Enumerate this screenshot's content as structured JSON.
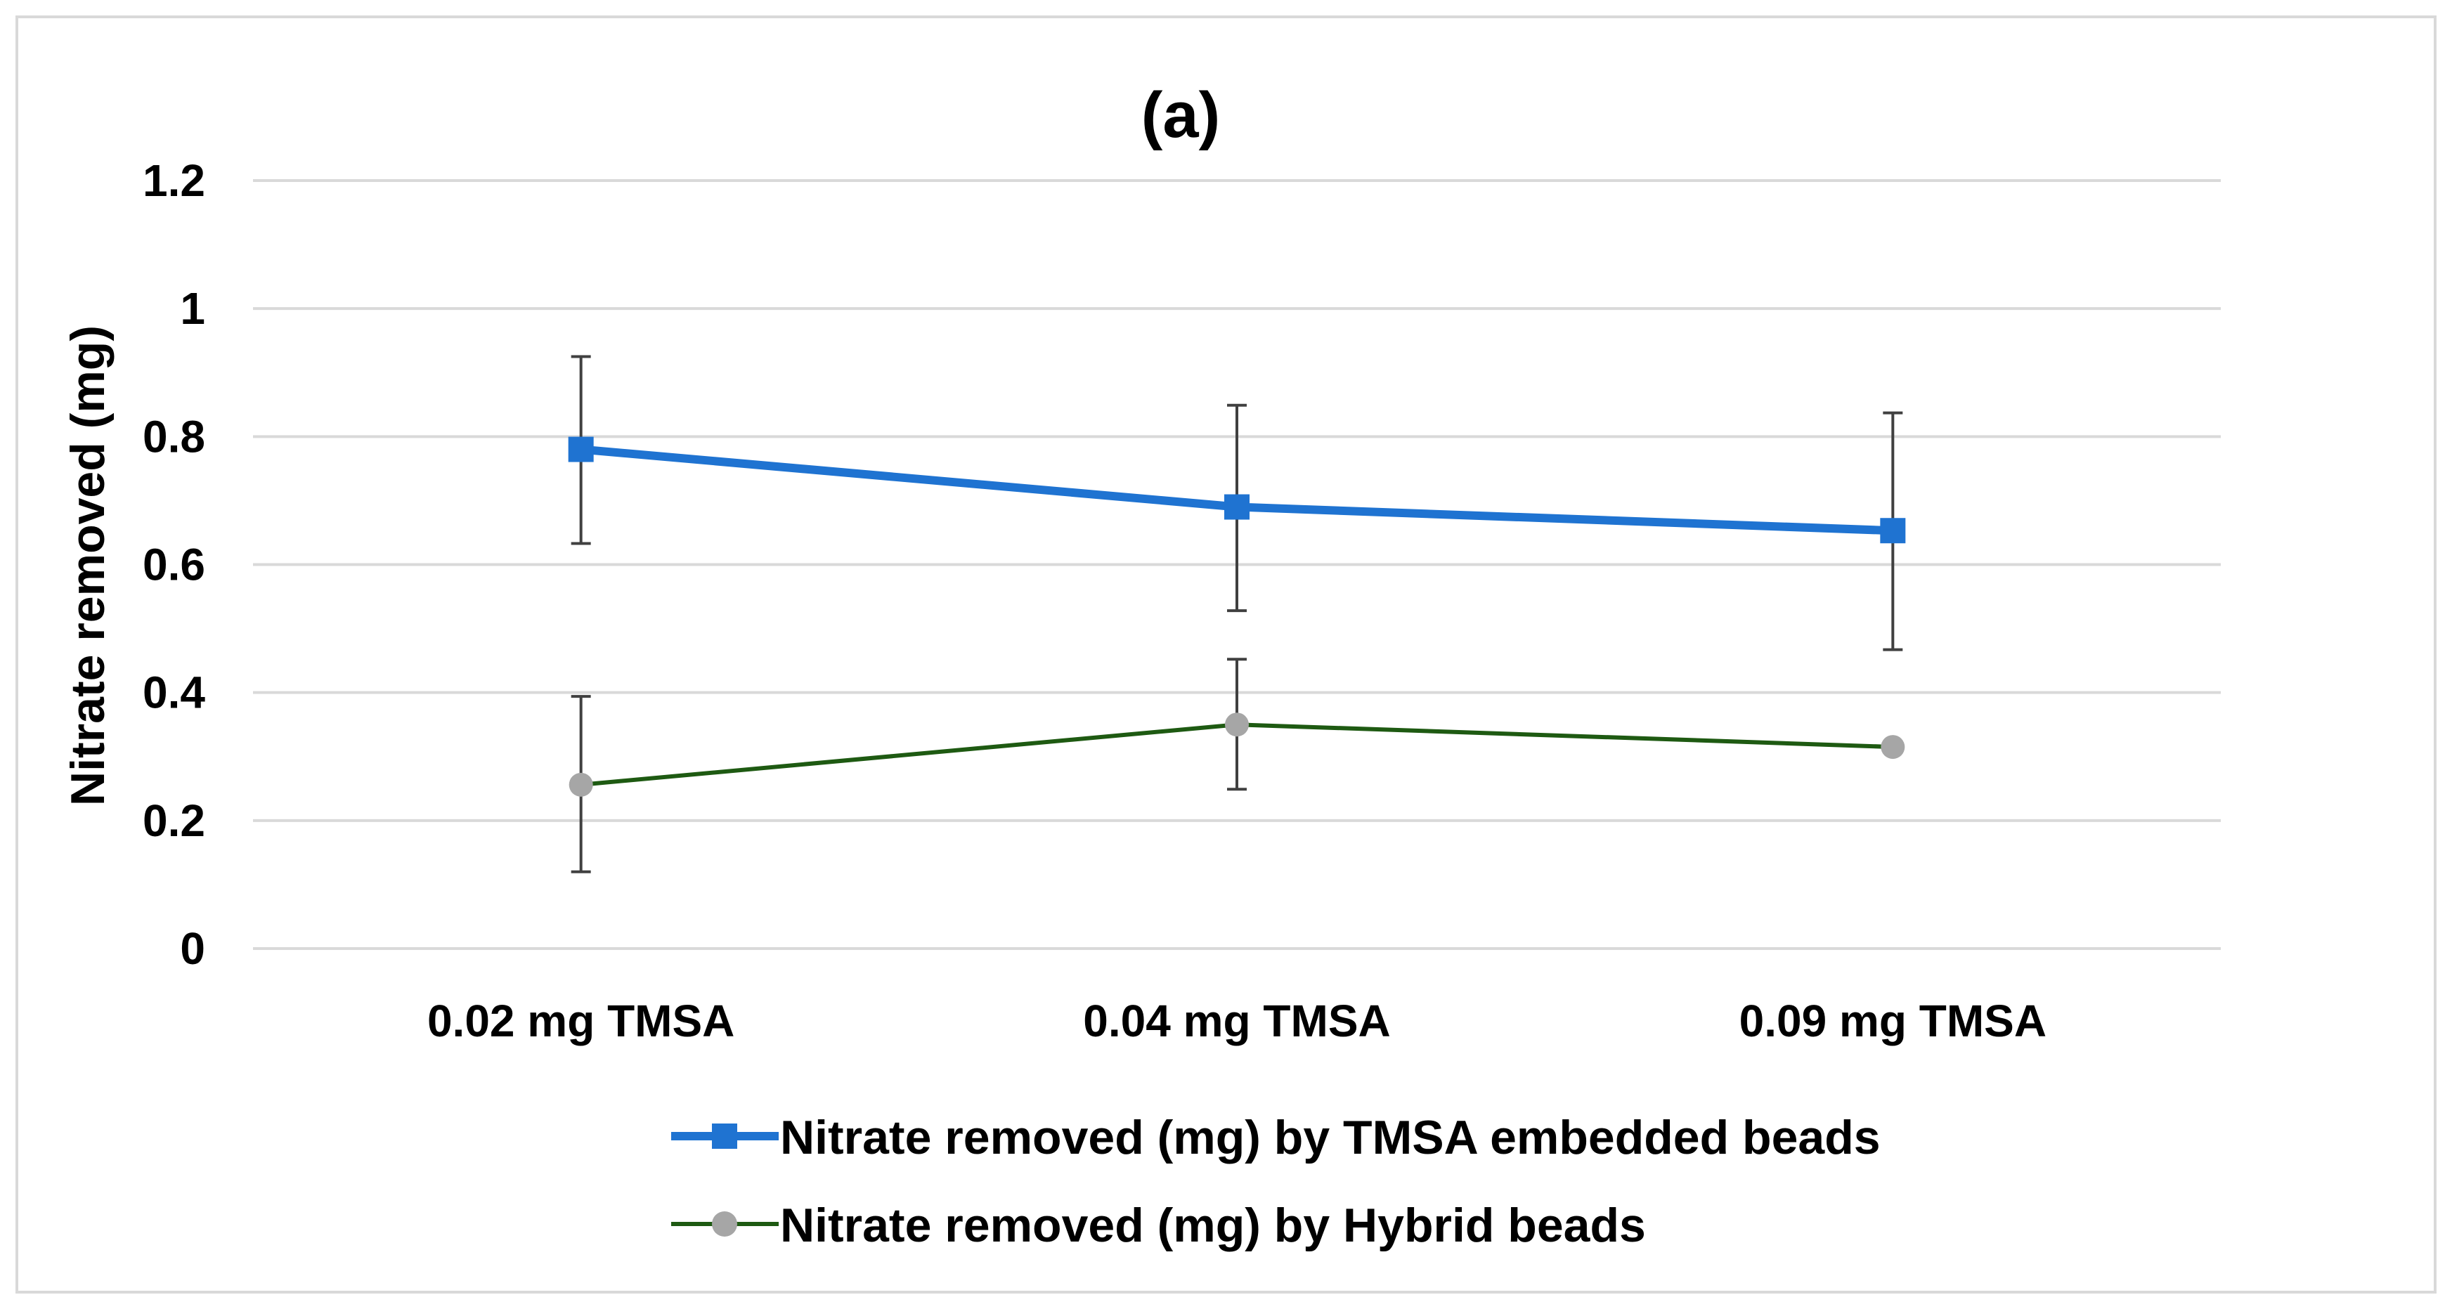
{
  "chart_data": {
    "type": "line",
    "title": "(a)",
    "xlabel": "",
    "ylabel": "Nitrate removed (mg)",
    "ylim": [
      0,
      1.2
    ],
    "yticks": [
      "0",
      "0.2",
      "0.4",
      "0.6",
      "0.8",
      "1",
      "1.2"
    ],
    "ytick_values": [
      0,
      0.2,
      0.4,
      0.6,
      0.8,
      1.0,
      1.2
    ],
    "grid": true,
    "legend_position": "bottom",
    "categories": [
      "0.02 mg TMSA",
      "0.04 mg TMSA",
      "0.09 mg TMSA"
    ],
    "series": [
      {
        "name": "Nitrate removed (mg) by TMSA embedded beads",
        "values": [
          0.78,
          0.69,
          0.653
        ],
        "error_low": [
          0.633,
          0.528,
          0.467
        ],
        "error_high": [
          0.925,
          0.849,
          0.837
        ],
        "color": "#1f73d1",
        "marker": "square"
      },
      {
        "name": "Nitrate removed (mg) by Hybrid beads",
        "values": [
          0.256,
          0.35,
          0.315
        ],
        "error_low": [
          0.12,
          0.249,
          null
        ],
        "error_high": [
          0.394,
          0.452,
          null
        ],
        "color": "#1e5a12",
        "marker_color": "#a6a6a6",
        "marker": "circle"
      }
    ]
  },
  "colors": {
    "gridline": "#d9d9d9",
    "error_bar": "#404040",
    "frame": "#d9d9d9"
  }
}
